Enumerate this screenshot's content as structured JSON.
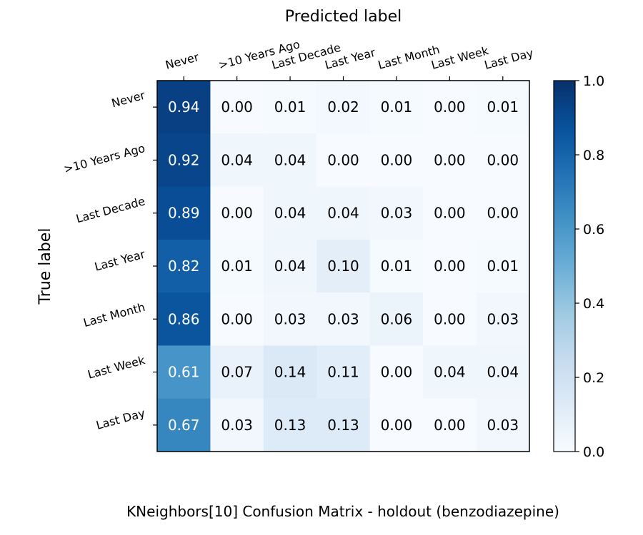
{
  "chart_data": {
    "type": "heatmap",
    "title": "KNeighbors[10] Confusion Matrix - holdout (benzodiazepine)",
    "xlabel": "Predicted label",
    "ylabel": "True label",
    "x_categories": [
      "Never",
      ">10 Years Ago",
      "Last Decade",
      "Last Year",
      "Last Month",
      "Last Week",
      "Last Day"
    ],
    "y_categories": [
      "Never",
      ">10 Years Ago",
      "Last Decade",
      "Last Year",
      "Last Month",
      "Last Week",
      "Last Day"
    ],
    "values": [
      [
        0.94,
        0.0,
        0.01,
        0.02,
        0.01,
        0.0,
        0.01
      ],
      [
        0.92,
        0.04,
        0.04,
        0.0,
        0.0,
        0.0,
        0.0
      ],
      [
        0.89,
        0.0,
        0.04,
        0.04,
        0.03,
        0.0,
        0.0
      ],
      [
        0.82,
        0.01,
        0.04,
        0.1,
        0.01,
        0.0,
        0.01
      ],
      [
        0.86,
        0.0,
        0.03,
        0.03,
        0.06,
        0.0,
        0.03
      ],
      [
        0.61,
        0.07,
        0.14,
        0.11,
        0.0,
        0.04,
        0.04
      ],
      [
        0.67,
        0.03,
        0.13,
        0.13,
        0.0,
        0.0,
        0.03
      ]
    ],
    "value_format": "0.00",
    "colormap": "Blues",
    "colorbar": {
      "range": [
        0,
        1
      ],
      "ticks": [
        0.0,
        0.2,
        0.4,
        0.6,
        0.8,
        1.0
      ],
      "tick_labels": [
        "0.0",
        "0.2",
        "0.4",
        "0.6",
        "0.8",
        "1.0"
      ]
    },
    "x_axis_position": "top",
    "grid": false
  }
}
